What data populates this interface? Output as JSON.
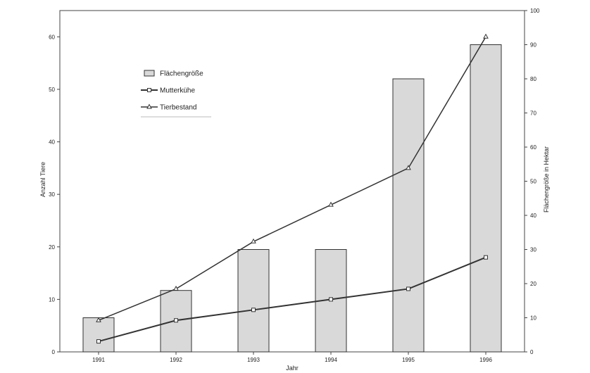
{
  "chart_data": {
    "type": "bar",
    "xlabel": "Jahr",
    "ylabel_left": "Anzahl Tiere",
    "ylabel_right": "Flächengröße in Hektar",
    "categories": [
      "1991",
      "1992",
      "1993",
      "1994",
      "1995",
      "1996"
    ],
    "ylim_left": [
      0,
      65
    ],
    "yticks_left": [
      0,
      10,
      20,
      30,
      40,
      50,
      60
    ],
    "ylim_right": [
      0,
      100
    ],
    "yticks_right": [
      0,
      10,
      20,
      30,
      40,
      50,
      60,
      70,
      80,
      90,
      100
    ],
    "grid": false,
    "legend_position": "upper-left inside",
    "series": [
      {
        "name": "Flächengröße",
        "kind": "bar",
        "axis": "right",
        "values": [
          10,
          18,
          30,
          30,
          80,
          90
        ],
        "fill": "#d9d9d9",
        "stroke": "#333333"
      },
      {
        "name": "Mutterkühe",
        "kind": "line",
        "marker": "square",
        "axis": "left",
        "values": [
          2,
          6,
          8,
          10,
          12,
          18
        ],
        "color": "#333333"
      },
      {
        "name": "Tierbestand",
        "kind": "line",
        "marker": "triangle",
        "axis": "left",
        "values": [
          6,
          12,
          21,
          28,
          35,
          60
        ],
        "color": "#333333"
      }
    ]
  }
}
